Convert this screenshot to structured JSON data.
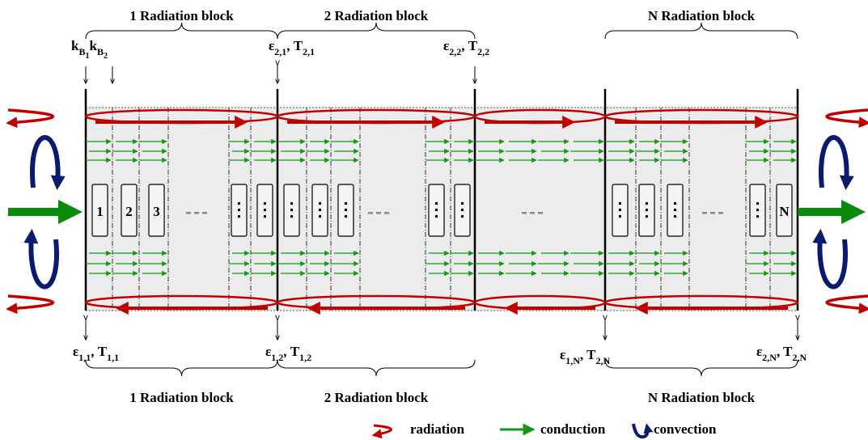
{
  "blocks_top": [
    "1 Radiation block",
    "2 Radiation block",
    "N Radiation block"
  ],
  "blocks_bottom": [
    "1 Radiation block",
    "2 Radiation block",
    "N Radiation block"
  ],
  "top_labels": [
    [
      {
        "t": "k"
      },
      {
        "s": "B"
      },
      {
        "ss": "1"
      },
      {
        "t": "k"
      },
      {
        "s": "B"
      },
      {
        "ss": "2"
      }
    ],
    [
      {
        "t": "ε"
      },
      {
        "s": "2,1"
      },
      {
        "t": ", T"
      },
      {
        "s": "2,1"
      }
    ],
    [
      {
        "t": "ε"
      },
      {
        "s": "2,2"
      },
      {
        "t": ", T"
      },
      {
        "s": "2,2"
      }
    ]
  ],
  "bottom_labels": [
    [
      {
        "t": "ε"
      },
      {
        "s": "1,1"
      },
      {
        "t": ", T"
      },
      {
        "s": "1,1"
      }
    ],
    [
      {
        "t": "ε"
      },
      {
        "s": "1,2"
      },
      {
        "t": ", T"
      },
      {
        "s": "1,2"
      }
    ],
    [
      {
        "t": "ε"
      },
      {
        "s": "1,N"
      },
      {
        "t": ", T"
      },
      {
        "s": "2,N"
      }
    ],
    [
      {
        "t": "ε"
      },
      {
        "s": "2,N"
      },
      {
        "t": ", T"
      },
      {
        "s": "2,N"
      }
    ]
  ],
  "layers": [
    "1",
    "2",
    "3",
    "N"
  ],
  "legend": [
    "radiation",
    "conduction",
    "convection"
  ]
}
